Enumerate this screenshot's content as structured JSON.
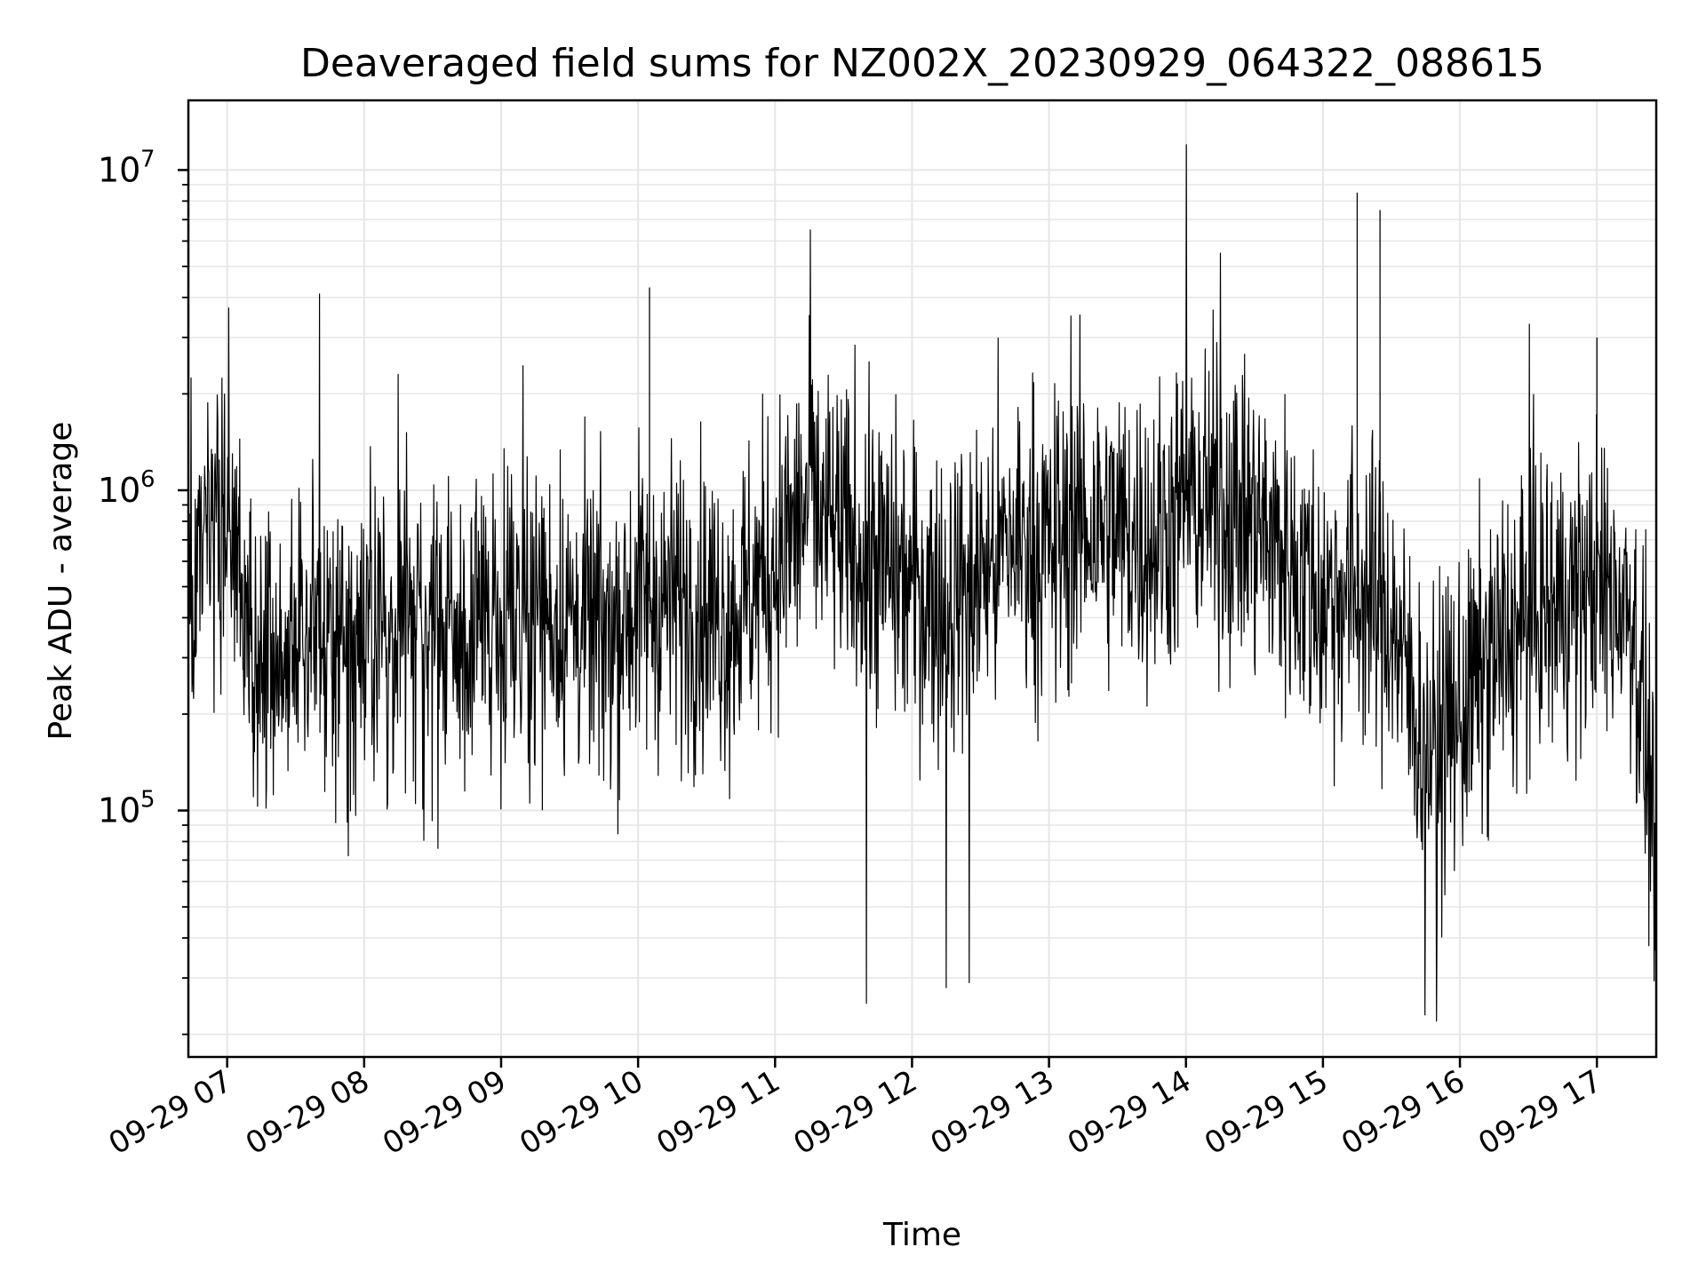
{
  "chart_data": {
    "type": "line",
    "title": "Deaveraged field sums for NZ002X_20230929_064322_088615",
    "xlabel": "Time",
    "ylabel": "Peak ADU - average",
    "y_scale": "log",
    "ylim": [
      17000,
      16500000
    ],
    "xlim": [
      "2023-09-29 06:43",
      "2023-09-29 17:26"
    ],
    "grid": true,
    "legend": "none",
    "colors": {
      "line": "#000000",
      "grid": "#e6e6e6",
      "axes": "#000000",
      "background": "#ffffff"
    },
    "x_ticks": [
      {
        "value": "2023-09-29 07:00",
        "label": "09-29 07"
      },
      {
        "value": "2023-09-29 08:00",
        "label": "09-29 08"
      },
      {
        "value": "2023-09-29 09:00",
        "label": "09-29 09"
      },
      {
        "value": "2023-09-29 10:00",
        "label": "09-29 10"
      },
      {
        "value": "2023-09-29 11:00",
        "label": "09-29 11"
      },
      {
        "value": "2023-09-29 12:00",
        "label": "09-29 12"
      },
      {
        "value": "2023-09-29 13:00",
        "label": "09-29 13"
      },
      {
        "value": "2023-09-29 14:00",
        "label": "09-29 14"
      },
      {
        "value": "2023-09-29 15:00",
        "label": "09-29 15"
      },
      {
        "value": "2023-09-29 16:00",
        "label": "09-29 16"
      },
      {
        "value": "2023-09-29 17:00",
        "label": "09-29 17"
      }
    ],
    "y_ticks": [
      {
        "value": 100000,
        "base": "10",
        "exponent": "5"
      },
      {
        "value": 1000000,
        "base": "10",
        "exponent": "6"
      },
      {
        "value": 10000000,
        "base": "10",
        "exponent": "7"
      }
    ],
    "series": [
      {
        "x": [
          "2023-09-29 06:43",
          "2023-09-29 06:50",
          "2023-09-29 07:00",
          "2023-09-29 07:10",
          "2023-09-29 07:20",
          "2023-09-29 07:30",
          "2023-09-29 07:40",
          "2023-09-29 07:50",
          "2023-09-29 08:00",
          "2023-09-29 08:15",
          "2023-09-29 08:30",
          "2023-09-29 08:45",
          "2023-09-29 09:00",
          "2023-09-29 09:15",
          "2023-09-29 09:30",
          "2023-09-29 09:45",
          "2023-09-29 10:00",
          "2023-09-29 10:20",
          "2023-09-29 10:40",
          "2023-09-29 11:00",
          "2023-09-29 11:15",
          "2023-09-29 11:30",
          "2023-09-29 11:45",
          "2023-09-29 12:00",
          "2023-09-29 12:15",
          "2023-09-29 12:30",
          "2023-09-29 12:45",
          "2023-09-29 13:00",
          "2023-09-29 13:15",
          "2023-09-29 13:30",
          "2023-09-29 13:45",
          "2023-09-29 14:00",
          "2023-09-29 14:15",
          "2023-09-29 14:30",
          "2023-09-29 14:45",
          "2023-09-29 15:00",
          "2023-09-29 15:15",
          "2023-09-29 15:30",
          "2023-09-29 15:45",
          "2023-09-29 16:00",
          "2023-09-29 16:15",
          "2023-09-29 16:30",
          "2023-09-29 16:45",
          "2023-09-29 17:00",
          "2023-09-29 17:15",
          "2023-09-29 17:26"
        ],
        "y": [
          450000,
          600000,
          900000,
          300000,
          250000,
          350000,
          400000,
          300000,
          400000,
          380000,
          350000,
          330000,
          450000,
          420000,
          400000,
          350000,
          450000,
          450000,
          400000,
          600000,
          900000,
          700000,
          600000,
          500000,
          450000,
          550000,
          700000,
          650000,
          800000,
          750000,
          700000,
          900000,
          900000,
          800000,
          600000,
          450000,
          500000,
          400000,
          150000,
          200000,
          300000,
          400000,
          450000,
          500000,
          450000,
          80000
        ],
        "spikes": [
          {
            "x": "2023-09-29 07:40",
            "y": 4100000
          },
          {
            "x": "2023-09-29 08:15",
            "y": 2300000
          },
          {
            "x": "2023-09-29 09:10",
            "y": 2450000
          },
          {
            "x": "2023-09-29 10:05",
            "y": 4300000
          },
          {
            "x": "2023-09-29 11:15",
            "y": 6500000
          },
          {
            "x": "2023-09-29 13:10",
            "y": 3500000
          },
          {
            "x": "2023-09-29 14:00",
            "y": 12000000
          },
          {
            "x": "2023-09-29 14:15",
            "y": 5500000
          },
          {
            "x": "2023-09-29 15:15",
            "y": 8500000
          },
          {
            "x": "2023-09-29 15:25",
            "y": 7500000
          },
          {
            "x": "2023-09-29 16:30",
            "y": 3300000
          },
          {
            "x": "2023-09-29 17:00",
            "y": 3000000
          },
          {
            "x": "2023-09-29 11:40",
            "y": 25000
          },
          {
            "x": "2023-09-29 12:15",
            "y": 28000
          },
          {
            "x": "2023-09-29 12:25",
            "y": 29000
          },
          {
            "x": "2023-09-29 15:45",
            "y": 23000
          },
          {
            "x": "2023-09-29 15:50",
            "y": 22000
          }
        ]
      }
    ]
  }
}
